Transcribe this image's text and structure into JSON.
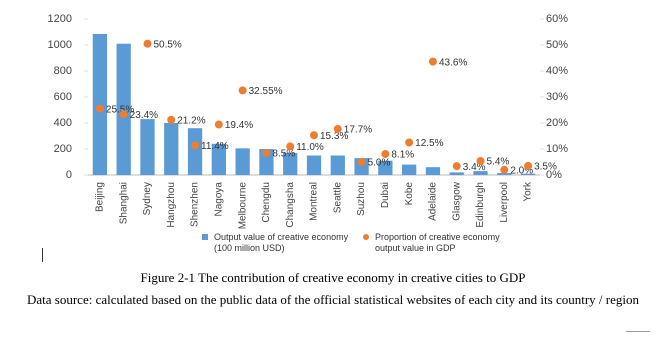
{
  "chart_data": {
    "type": "bar-line",
    "categories": [
      "Beijing",
      "Shanghai",
      "Sydney",
      "Hangzhou",
      "Shenzhen",
      "Nagoya",
      "Melbourne",
      "Chengdu",
      "Changsha",
      "Montreal",
      "Seattle",
      "Suzhou",
      "Dubai",
      "Kobe",
      "Adelaide",
      "Glasgow",
      "Edinburgh",
      "Liverpool",
      "York"
    ],
    "series": [
      {
        "name": "Output value of creative economy (100 million USD)",
        "color": "#5b9bd5",
        "kind": "bar",
        "values": [
          1085,
          1010,
          430,
          400,
          360,
          240,
          205,
          200,
          170,
          150,
          150,
          130,
          110,
          80,
          60,
          20,
          30,
          15,
          10
        ]
      },
      {
        "name": "Proportion of creative economy output value in GDP",
        "color": "#ed7d31",
        "kind": "dot",
        "axis": "y2",
        "values": [
          25.5,
          23.4,
          50.5,
          21.2,
          11.4,
          19.4,
          32.55,
          8.5,
          11.0,
          15.3,
          17.7,
          5.0,
          8.1,
          12.5,
          43.6,
          3.4,
          5.4,
          2.0,
          3.5
        ],
        "value_labels": [
          "25.5%",
          "23.4%",
          "50.5%",
          "21.2%",
          "11.4%",
          "19.4%",
          "32.55%",
          "8.5%",
          "11.0%",
          "15.3%",
          "17.7%",
          "5.0%",
          "8.1%",
          "12.5%",
          "43.6%",
          "3.4%",
          "5.4%",
          "2.0%",
          "3.5%"
        ]
      }
    ],
    "ylim": [
      0,
      1200
    ],
    "yticks": [
      0,
      200,
      400,
      600,
      800,
      1000,
      1200
    ],
    "y2lim": [
      0,
      60
    ],
    "y2ticks": [
      {
        "value": 0,
        "label": "0%"
      },
      {
        "value": 10,
        "label": "10%"
      },
      {
        "value": 20,
        "label": "20%"
      },
      {
        "value": 30,
        "label": "30%"
      },
      {
        "value": 40,
        "label": "40%"
      },
      {
        "value": 50,
        "label": "50%"
      },
      {
        "value": 60,
        "label": "60%"
      }
    ],
    "grid": false
  },
  "caption": "Figure 2-1 The contribution of creative economy in creative cities to GDP",
  "source": "Data source: calculated based on the public data of the official statistical websites of each city and its country / region"
}
